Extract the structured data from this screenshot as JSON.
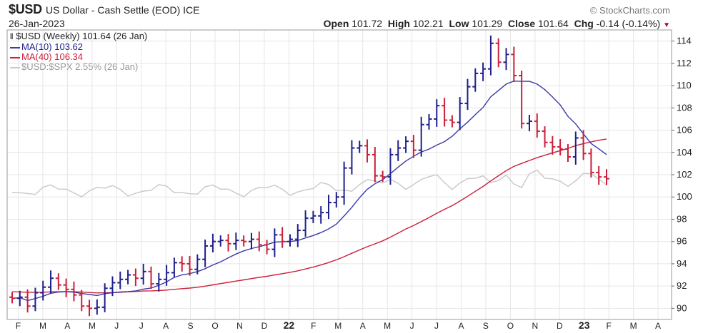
{
  "header": {
    "symbol": "$USD",
    "name": "US Dollar - Cash Settle (EOD)",
    "exchange": "ICE",
    "date": "26-Jan-2023",
    "brand": "© StockCharts.com",
    "open_label": "Open",
    "open": "101.72",
    "high_label": "High",
    "high": "102.21",
    "low_label": "Low",
    "low": "101.29",
    "close_label": "Close",
    "close": "101.64",
    "chg_label": "Chg",
    "chg": "-0.14 (-0.14%)"
  },
  "legend": {
    "price": "$USD (Weekly) 101.64 (26 Jan)",
    "ma10": "MA(10) 103.62",
    "ma40": "MA(40) 106.34",
    "relative": "$USD:$SPX 2.55% (26 Jan)"
  },
  "colors": {
    "up": "#1f1f8c",
    "down": "#cc1f3a",
    "ma10": "#3a3aa8",
    "ma40": "#cc1f3a",
    "relative": "#c8c8c8",
    "grid": "#e6e6e6"
  },
  "chart_data": {
    "type": "line",
    "chart_kind": "ohlc-bar",
    "interval": "weekly",
    "ylim": [
      89,
      115
    ],
    "y_ticks": [
      90,
      92,
      94,
      96,
      98,
      100,
      102,
      104,
      106,
      108,
      110,
      112,
      114
    ],
    "x_tick_labels": [
      "F",
      "M",
      "A",
      "M",
      "J",
      "J",
      "A",
      "S",
      "O",
      "N",
      "D",
      "22",
      "F",
      "M",
      "A",
      "M",
      "J",
      "J",
      "A",
      "S",
      "O",
      "N",
      "D",
      "23",
      "F",
      "M",
      "A"
    ],
    "grid": true,
    "series": [
      {
        "name": "$USD (Weekly)",
        "style": "ohlc",
        "closes": [
          90.9,
          91.0,
          90.2,
          91.4,
          91.9,
          92.7,
          92.1,
          91.7,
          91.2,
          90.2,
          90.0,
          90.1,
          91.8,
          92.3,
          92.6,
          93.0,
          92.7,
          93.3,
          92.2,
          92.6,
          93.2,
          94.1,
          94.0,
          93.5,
          94.4,
          95.6,
          96.0,
          96.1,
          95.8,
          96.1,
          96.0,
          96.2,
          95.7,
          95.3,
          96.6,
          96.0,
          96.2,
          97.0,
          98.1,
          98.3,
          98.6,
          99.5,
          100.0,
          102.6,
          104.4,
          104.6,
          103.8,
          101.9,
          101.8,
          103.8,
          104.4,
          105.0,
          104.2,
          106.5,
          107.0,
          108.2,
          106.9,
          106.7,
          108.4,
          109.9,
          111.1,
          111.5,
          113.8,
          112.1,
          112.8,
          110.9,
          106.6,
          106.8,
          105.9,
          104.9,
          104.5,
          104.3,
          103.6,
          105.3,
          103.9,
          102.2,
          101.8,
          101.64
        ]
      },
      {
        "name": "MA(10)",
        "style": "line",
        "last": 103.62
      },
      {
        "name": "MA(40)",
        "style": "line",
        "last": 106.34
      },
      {
        "name": "$USD:$SPX",
        "style": "line",
        "last_pct": 2.55
      }
    ]
  }
}
